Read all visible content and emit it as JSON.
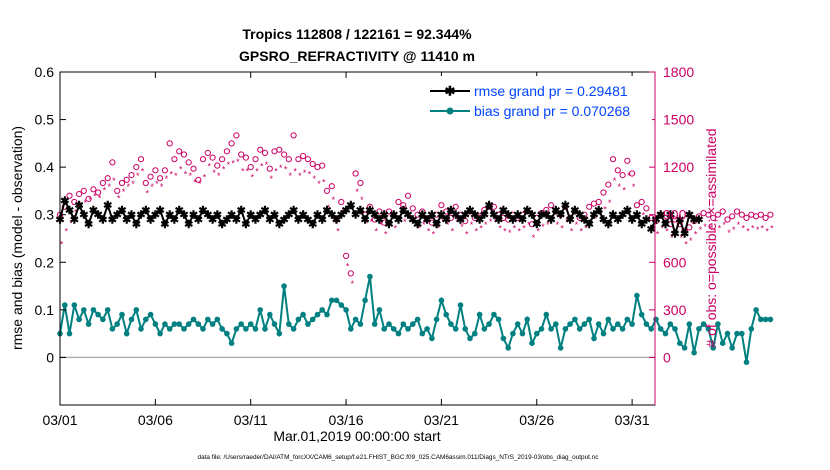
{
  "chart_data": {
    "type": "line",
    "title_line1": "Tropics 112808 / 122161 = 92.344%",
    "title_line2": "GPSRO_REFRACTIVITY @ 11410 m",
    "xlabel": "Mar.01,2019 00:00:00 start",
    "ylabel_left": "rmse and bias (model - observation)",
    "ylabel_right": "# of obs: o=possible; ×=assimilated",
    "footer": "data file: /Users/raeder/DAI/ATM_forcXX/CAM6_setup/f.e21.FHIST_BGC.f09_025.CAM6assim.011/Diags_NTrS_2019-03/obs_diag_output.nc",
    "xlim": [
      1,
      32.2
    ],
    "ylim_left": [
      -0.1,
      0.6
    ],
    "ylim_right": [
      -300,
      1800
    ],
    "xticks": [
      1,
      6,
      11,
      16,
      21,
      26,
      31
    ],
    "xtick_labels": [
      "03/01",
      "03/06",
      "03/11",
      "03/16",
      "03/21",
      "03/26",
      "03/31"
    ],
    "yticks_left": [
      0,
      0.1,
      0.2,
      0.3,
      0.4,
      0.5,
      0.6
    ],
    "ytick_labels_left": [
      "0",
      "0.1",
      "0.2",
      "0.3",
      "0.4",
      "0.5",
      "0.6"
    ],
    "yticks_right": [
      0,
      300,
      600,
      900,
      1200,
      1500,
      1800
    ],
    "ytick_labels_right": [
      "0",
      "300",
      "600",
      "900",
      "1200",
      "1500",
      "1800"
    ],
    "legend": [
      {
        "name": "rmse grand pr = 0.29481",
        "color": "#000000"
      },
      {
        "name": "bias grand pr = 0.070268",
        "color": "#008080"
      }
    ],
    "colors": {
      "rmse": "#000000",
      "bias": "#008080",
      "obs": "#cc0066",
      "legend_text": "#0044ff",
      "zero_line": "#b0b0b0"
    },
    "x_start": 1.0,
    "x_step": 0.25,
    "series": [
      {
        "name": "rmse",
        "values": [
          0.29,
          0.33,
          0.31,
          0.29,
          0.32,
          0.3,
          0.28,
          0.31,
          0.3,
          0.29,
          0.32,
          0.29,
          0.3,
          0.31,
          0.29,
          0.3,
          0.28,
          0.3,
          0.31,
          0.29,
          0.3,
          0.31,
          0.28,
          0.3,
          0.29,
          0.31,
          0.3,
          0.28,
          0.3,
          0.29,
          0.31,
          0.3,
          0.29,
          0.3,
          0.28,
          0.29,
          0.3,
          0.29,
          0.31,
          0.28,
          0.3,
          0.29,
          0.3,
          0.31,
          0.29,
          0.3,
          0.28,
          0.29,
          0.3,
          0.31,
          0.29,
          0.3,
          0.29,
          0.28,
          0.3,
          0.29,
          0.31,
          0.3,
          0.29,
          0.3,
          0.31,
          0.32,
          0.3,
          0.31,
          0.29,
          0.31,
          0.3,
          0.29,
          0.3,
          0.28,
          0.3,
          0.29,
          0.31,
          0.3,
          0.29,
          0.28,
          0.3,
          0.29,
          0.3,
          0.28,
          0.3,
          0.29,
          0.31,
          0.3,
          0.29,
          0.3,
          0.31,
          0.3,
          0.29,
          0.3,
          0.32,
          0.3,
          0.29,
          0.31,
          0.3,
          0.29,
          0.3,
          0.29,
          0.31,
          0.3,
          0.28,
          0.3,
          0.3,
          0.29,
          0.31,
          0.3,
          0.32,
          0.29,
          0.31,
          0.3,
          0.29,
          0.28,
          0.3,
          0.31,
          0.29,
          0.28,
          0.3,
          0.29,
          0.3,
          0.31,
          0.29,
          0.3,
          0.28,
          0.29,
          0.27,
          0.29,
          0.3,
          0.28,
          0.3,
          0.26,
          0.29,
          0.26,
          0.3,
          0.29,
          0.29
        ],
        "gaps_at": [
          60,
          124
        ]
      },
      {
        "name": "bias",
        "values": [
          0.05,
          0.11,
          0.05,
          0.11,
          0.08,
          0.1,
          0.07,
          0.1,
          0.09,
          0.08,
          0.1,
          0.06,
          0.07,
          0.09,
          0.05,
          0.08,
          0.1,
          0.06,
          0.08,
          0.09,
          0.07,
          0.05,
          0.07,
          0.06,
          0.07,
          0.07,
          0.06,
          0.07,
          0.08,
          0.07,
          0.06,
          0.08,
          0.07,
          0.08,
          0.06,
          0.05,
          0.03,
          0.06,
          0.07,
          0.06,
          0.07,
          0.06,
          0.1,
          0.06,
          0.09,
          0.07,
          0.05,
          0.15,
          0.07,
          0.06,
          0.08,
          0.09,
          0.07,
          0.08,
          0.09,
          0.1,
          0.09,
          0.12,
          0.12,
          0.11,
          0.1,
          0.06,
          0.08,
          0.07,
          0.12,
          0.17,
          0.07,
          0.1,
          0.06,
          0.07,
          0.06,
          0.05,
          0.07,
          0.06,
          0.07,
          0.08,
          0.05,
          0.06,
          0.04,
          0.08,
          0.12,
          0.09,
          0.07,
          0.06,
          0.11,
          0.06,
          0.04,
          0.05,
          0.09,
          0.06,
          0.07,
          0.09,
          0.08,
          0.04,
          0.02,
          0.05,
          0.07,
          0.05,
          0.08,
          0.03,
          0.05,
          0.06,
          0.09,
          0.06,
          0.07,
          0.02,
          0.06,
          0.07,
          0.08,
          0.06,
          0.07,
          0.08,
          0.04,
          0.07,
          0.05,
          0.08,
          0.06,
          0.07,
          0.06,
          0.08,
          0.07,
          0.13,
          0.09,
          0.07,
          0.06,
          0.08,
          0.06,
          0.05,
          0.07,
          0.06,
          0.03,
          0.02,
          0.07,
          0.01,
          0.06,
          0.07,
          0.06,
          0.02,
          0.07,
          0.03,
          0.05,
          0.02,
          0.05,
          0.05,
          -0.01,
          0.06,
          0.1,
          0.08,
          0.08,
          0.08
        ]
      },
      {
        "name": "obs_possible",
        "values": [
          900,
          950,
          1020,
          980,
          1030,
          1050,
          1000,
          1060,
          1040,
          1100,
          1130,
          1230,
          1050,
          1100,
          1120,
          1150,
          1200,
          1250,
          1100,
          1140,
          1180,
          1130,
          1180,
          1350,
          1250,
          1300,
          1280,
          1230,
          1190,
          1120,
          1250,
          1290,
          1260,
          1210,
          1250,
          1300,
          1350,
          1400,
          1280,
          1260,
          1200,
          1250,
          1310,
          1290,
          1190,
          1300,
          1310,
          1280,
          1250,
          1400,
          1250,
          1270,
          1250,
          1220,
          1200,
          1210,
          1050,
          1080,
          870,
          980,
          640,
          530,
          1160,
          1100,
          900,
          950,
          870,
          920,
          850,
          920,
          900,
          980,
          960,
          1020,
          940,
          900,
          920,
          870,
          850,
          900,
          960,
          920,
          880,
          950,
          900,
          860,
          920,
          880,
          890,
          930,
          950,
          950,
          900,
          880,
          870,
          900,
          880,
          900,
          920,
          840,
          880,
          910,
          930,
          960,
          920,
          900,
          950,
          880,
          920,
          880,
          900,
          950,
          970,
          980,
          1040,
          1090,
          1250,
          1180,
          1150,
          1240,
          1160,
          960,
          980,
          940,
          880,
          860,
          900,
          880,
          840,
          870,
          840,
          800,
          820,
          860,
          890,
          910,
          900,
          880,
          900,
          920,
          870,
          890,
          920,
          900,
          880,
          900,
          890,
          900,
          880,
          900
        ]
      },
      {
        "name": "obs_assimilated",
        "values": [
          720,
          800,
          850,
          920,
          960,
          980,
          1000,
          1020,
          1010,
          1060,
          1080,
          1120,
          1010,
          1050,
          1080,
          1100,
          1150,
          1180,
          1040,
          1080,
          1100,
          1080,
          1130,
          1160,
          1150,
          1190,
          1160,
          1150,
          1110,
          1100,
          1140,
          1210,
          1170,
          1150,
          1190,
          1220,
          1230,
          1240,
          1180,
          1180,
          1140,
          1180,
          1210,
          1220,
          1130,
          1180,
          1200,
          1190,
          1150,
          1180,
          1150,
          1170,
          1160,
          1130,
          1100,
          1110,
          950,
          1000,
          800,
          920,
          580,
          470,
          1050,
          1000,
          850,
          860,
          800,
          840,
          780,
          840,
          820,
          880,
          860,
          900,
          860,
          820,
          840,
          800,
          780,
          820,
          860,
          840,
          800,
          860,
          830,
          780,
          840,
          800,
          820,
          840,
          860,
          860,
          820,
          800,
          790,
          820,
          800,
          820,
          840,
          760,
          800,
          830,
          840,
          870,
          840,
          820,
          860,
          800,
          840,
          800,
          820,
          860,
          880,
          900,
          940,
          980,
          1120,
          1080,
          1060,
          1150,
          1080,
          880,
          900,
          860,
          800,
          780,
          820,
          800,
          760,
          790,
          760,
          720,
          740,
          780,
          810,
          830,
          820,
          800,
          820,
          840,
          790,
          810,
          840,
          820,
          800,
          820,
          810,
          820,
          800,
          820
        ]
      }
    ]
  }
}
